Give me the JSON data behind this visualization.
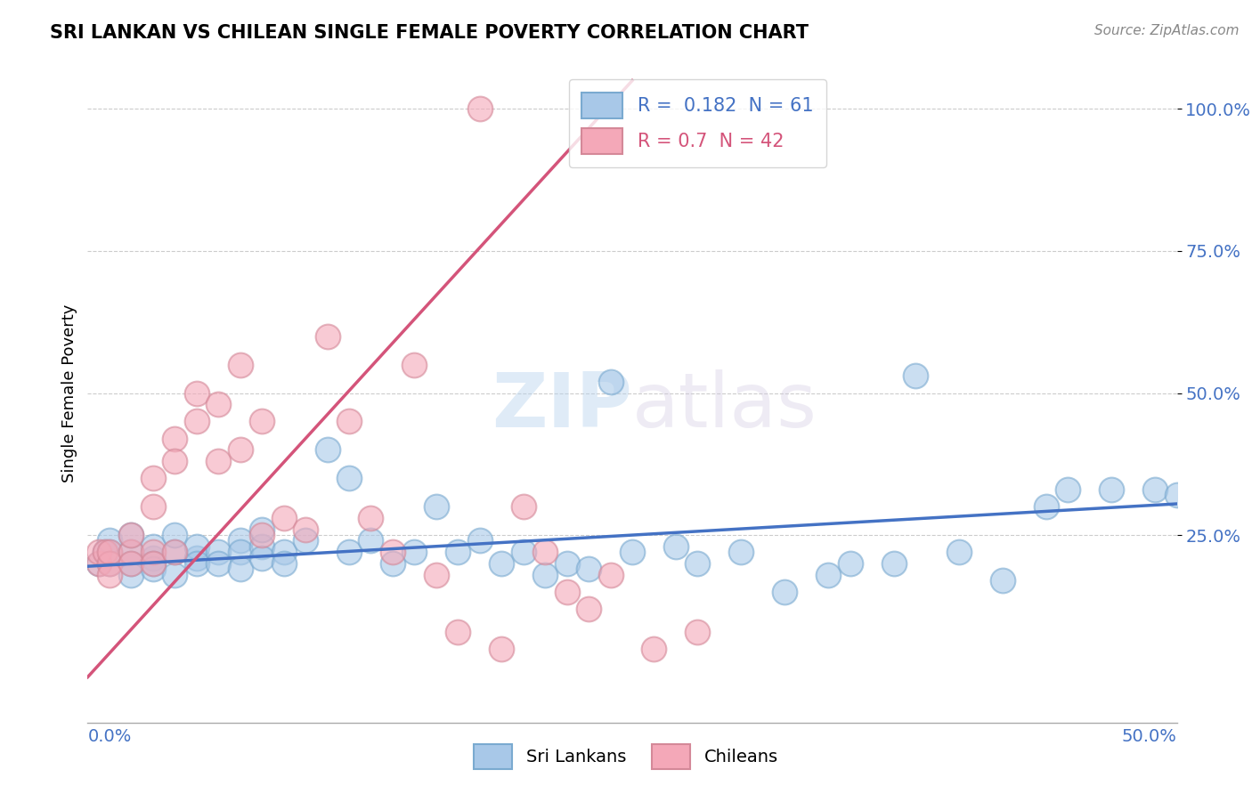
{
  "title": "SRI LANKAN VS CHILEAN SINGLE FEMALE POVERTY CORRELATION CHART",
  "source": "Source: ZipAtlas.com",
  "ylabel": "Single Female Poverty",
  "xlim": [
    0.0,
    0.5
  ],
  "ylim": [
    -0.08,
    1.08
  ],
  "sri_lankan_R": 0.182,
  "sri_lankan_N": 61,
  "chilean_R": 0.7,
  "chilean_N": 42,
  "sri_lankan_color": "#a8c8e8",
  "chilean_color": "#f4a8b8",
  "sri_lankan_line_color": "#4472c4",
  "chilean_line_color": "#d4547a",
  "watermark_color": "#d6e8f5",
  "background_color": "#ffffff",
  "sri_lankans_x": [
    0.005,
    0.008,
    0.01,
    0.01,
    0.01,
    0.02,
    0.02,
    0.02,
    0.02,
    0.03,
    0.03,
    0.03,
    0.03,
    0.04,
    0.04,
    0.04,
    0.05,
    0.05,
    0.05,
    0.06,
    0.06,
    0.07,
    0.07,
    0.07,
    0.08,
    0.08,
    0.08,
    0.09,
    0.09,
    0.1,
    0.11,
    0.12,
    0.12,
    0.13,
    0.14,
    0.15,
    0.16,
    0.17,
    0.18,
    0.19,
    0.2,
    0.21,
    0.22,
    0.23,
    0.24,
    0.25,
    0.27,
    0.28,
    0.3,
    0.32,
    0.34,
    0.35,
    0.37,
    0.38,
    0.4,
    0.42,
    0.44,
    0.45,
    0.47,
    0.49,
    0.5
  ],
  "sri_lankans_y": [
    0.2,
    0.22,
    0.2,
    0.22,
    0.24,
    0.2,
    0.22,
    0.25,
    0.18,
    0.21,
    0.23,
    0.2,
    0.19,
    0.22,
    0.18,
    0.25,
    0.21,
    0.23,
    0.2,
    0.22,
    0.2,
    0.24,
    0.22,
    0.19,
    0.23,
    0.21,
    0.26,
    0.22,
    0.2,
    0.24,
    0.4,
    0.35,
    0.22,
    0.24,
    0.2,
    0.22,
    0.3,
    0.22,
    0.24,
    0.2,
    0.22,
    0.18,
    0.2,
    0.19,
    0.52,
    0.22,
    0.23,
    0.2,
    0.22,
    0.15,
    0.18,
    0.2,
    0.2,
    0.53,
    0.22,
    0.17,
    0.3,
    0.33,
    0.33,
    0.33,
    0.32
  ],
  "chileans_x": [
    0.005,
    0.005,
    0.008,
    0.01,
    0.01,
    0.01,
    0.02,
    0.02,
    0.02,
    0.03,
    0.03,
    0.03,
    0.03,
    0.04,
    0.04,
    0.04,
    0.05,
    0.05,
    0.06,
    0.06,
    0.07,
    0.07,
    0.08,
    0.08,
    0.09,
    0.1,
    0.11,
    0.12,
    0.13,
    0.14,
    0.15,
    0.16,
    0.17,
    0.18,
    0.19,
    0.2,
    0.21,
    0.22,
    0.23,
    0.24,
    0.26,
    0.28
  ],
  "chileans_y": [
    0.2,
    0.22,
    0.22,
    0.2,
    0.22,
    0.18,
    0.22,
    0.25,
    0.2,
    0.3,
    0.35,
    0.22,
    0.2,
    0.42,
    0.38,
    0.22,
    0.45,
    0.5,
    0.48,
    0.38,
    0.55,
    0.4,
    0.45,
    0.25,
    0.28,
    0.26,
    0.6,
    0.45,
    0.28,
    0.22,
    0.55,
    0.18,
    0.08,
    1.0,
    0.05,
    0.3,
    0.22,
    0.15,
    0.12,
    0.18,
    0.05,
    0.08
  ]
}
